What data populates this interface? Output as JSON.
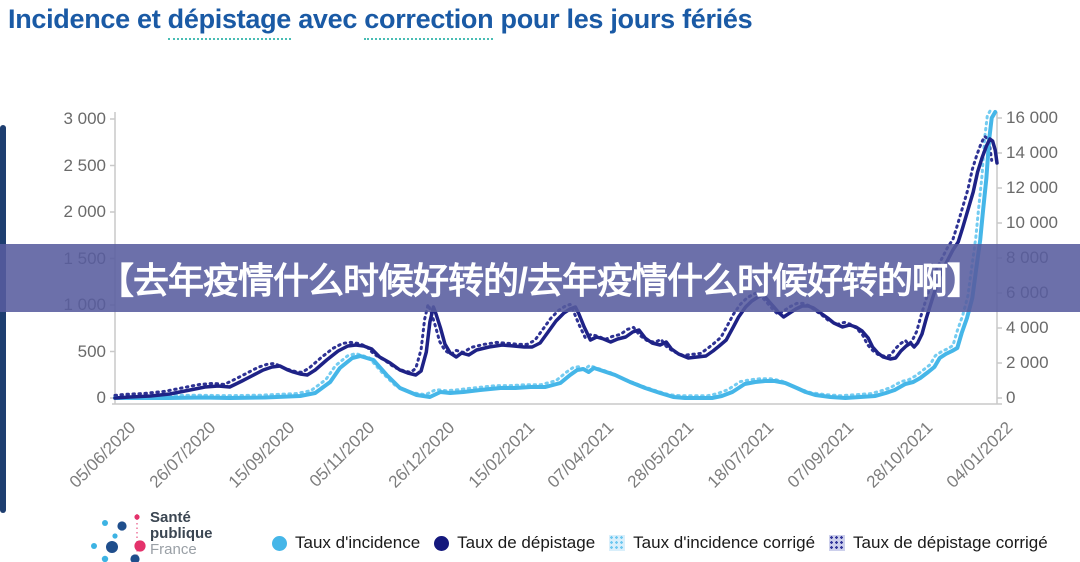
{
  "title": {
    "segments": [
      {
        "text": "Incidence et ",
        "underline": false
      },
      {
        "text": "dépistage",
        "underline": true
      },
      {
        "text": " avec ",
        "underline": false
      },
      {
        "text": "correction",
        "underline": true
      },
      {
        "text": " pour les jours fériés",
        "underline": false
      }
    ]
  },
  "banner": {
    "text": "【去年疫情什么时候好转的/去年疫情什么时候好转的啊】",
    "background": "#585c9e",
    "text_color": "#ffffff"
  },
  "logo": {
    "line1": "Santé",
    "line2": "publique",
    "line3": "France"
  },
  "legend": {
    "items": [
      {
        "label": "Taux d'incidence",
        "marker": "circle",
        "color": "#45b6e8"
      },
      {
        "label": "Taux de dépistage",
        "marker": "circle",
        "color": "#14187d"
      },
      {
        "label": "Taux d'incidence corrigé",
        "marker": "dots-square",
        "fill": "#d9effb",
        "dot": "#6fc8f0"
      },
      {
        "label": "Taux de dépistage corrigé",
        "marker": "dots-square",
        "fill": "#cdd0ec",
        "dot": "#34389b"
      }
    ]
  },
  "chart_data": {
    "type": "line",
    "title": "Incidence et dépistage avec correction pour les jours fériés",
    "grid": false,
    "legend_position": "bottom",
    "x_axis": {
      "tick_labels": [
        "05/06/2020",
        "26/07/2020",
        "15/09/2020",
        "05/11/2020",
        "26/12/2020",
        "15/02/2021",
        "07/04/2021",
        "28/05/2021",
        "18/07/2021",
        "07/09/2021",
        "28/10/2021",
        "04/01/2022"
      ]
    },
    "y_axis_left": {
      "range": [
        0,
        3000
      ],
      "ticks": [
        {
          "v": 3000,
          "label": "3 000"
        },
        {
          "v": 2500,
          "label": "2 500"
        },
        {
          "v": 2000,
          "label": "2 000"
        },
        {
          "v": 1500,
          "label": "1 500"
        },
        {
          "v": 1000,
          "label": "1 000"
        },
        {
          "v": 500,
          "label": "500"
        },
        {
          "v": 0,
          "label": "0"
        }
      ]
    },
    "y_axis_right": {
      "range": [
        0,
        16000
      ],
      "ticks": [
        {
          "v": 16000,
          "label": "16 000"
        },
        {
          "v": 14000,
          "label": "14 000"
        },
        {
          "v": 12000,
          "label": "12 000"
        },
        {
          "v": 10000,
          "label": "10 000"
        },
        {
          "v": 8000,
          "label": "8 000"
        },
        {
          "v": 6000,
          "label": "6 000"
        },
        {
          "v": 4000,
          "label": "4 000"
        },
        {
          "v": 2000,
          "label": "2 000"
        },
        {
          "v": 0,
          "label": "0"
        }
      ]
    },
    "series": [
      {
        "name": "Taux d'incidence corrigé",
        "axis": "left",
        "style": "dotted",
        "color": "#74ccf1",
        "width": 3,
        "base": "Taux d'incidence",
        "dt": -0.005,
        "dv": 25
      },
      {
        "name": "Taux de dépistage corrigé",
        "axis": "right",
        "style": "dotted",
        "color": "#2e3294",
        "width": 3,
        "base": "Taux de dépistage",
        "dt": -0.006,
        "dv": 150
      },
      {
        "name": "Taux d'incidence",
        "axis": "left",
        "style": "solid",
        "color": "#45b6e8",
        "width": 4,
        "points": [
          [
            0,
            0
          ],
          [
            0.03,
            0
          ],
          [
            0.06,
            0
          ],
          [
            0.1,
            5
          ],
          [
            0.13,
            0
          ],
          [
            0.17,
            5
          ],
          [
            0.21,
            22
          ],
          [
            0.227,
            54
          ],
          [
            0.244,
            172
          ],
          [
            0.255,
            323
          ],
          [
            0.269,
            430
          ],
          [
            0.278,
            452
          ],
          [
            0.293,
            409
          ],
          [
            0.308,
            247
          ],
          [
            0.323,
            108
          ],
          [
            0.342,
            32
          ],
          [
            0.357,
            11
          ],
          [
            0.369,
            65
          ],
          [
            0.38,
            54
          ],
          [
            0.395,
            65
          ],
          [
            0.414,
            86
          ],
          [
            0.437,
            108
          ],
          [
            0.454,
            108
          ],
          [
            0.471,
            118
          ],
          [
            0.488,
            118
          ],
          [
            0.505,
            161
          ],
          [
            0.516,
            247
          ],
          [
            0.524,
            301
          ],
          [
            0.531,
            312
          ],
          [
            0.537,
            280
          ],
          [
            0.543,
            323
          ],
          [
            0.55,
            301
          ],
          [
            0.567,
            247
          ],
          [
            0.584,
            172
          ],
          [
            0.601,
            108
          ],
          [
            0.618,
            54
          ],
          [
            0.633,
            11
          ],
          [
            0.646,
            0
          ],
          [
            0.663,
            0
          ],
          [
            0.677,
            0
          ],
          [
            0.688,
            22
          ],
          [
            0.7,
            65
          ],
          [
            0.714,
            151
          ],
          [
            0.726,
            172
          ],
          [
            0.737,
            183
          ],
          [
            0.748,
            183
          ],
          [
            0.76,
            161
          ],
          [
            0.773,
            108
          ],
          [
            0.783,
            65
          ],
          [
            0.794,
            32
          ],
          [
            0.811,
            11
          ],
          [
            0.828,
            0
          ],
          [
            0.845,
            11
          ],
          [
            0.862,
            22
          ],
          [
            0.874,
            54
          ],
          [
            0.884,
            86
          ],
          [
            0.896,
            151
          ],
          [
            0.905,
            172
          ],
          [
            0.913,
            215
          ],
          [
            0.922,
            280
          ],
          [
            0.929,
            333
          ],
          [
            0.935,
            430
          ],
          [
            0.942,
            473
          ],
          [
            0.949,
            505
          ],
          [
            0.955,
            538
          ],
          [
            0.96,
            699
          ],
          [
            0.966,
            860
          ],
          [
            0.972,
            1075
          ],
          [
            0.976,
            1355
          ],
          [
            0.981,
            1699
          ],
          [
            0.984,
            2000
          ],
          [
            0.988,
            2366
          ],
          [
            0.991,
            2774
          ],
          [
            0.994,
            3011
          ],
          [
            0.998,
            3075
          ]
        ]
      },
      {
        "name": "Taux de dépistage",
        "axis": "right",
        "style": "solid",
        "color": "#1e2286",
        "width": 3.5,
        "points": [
          [
            0,
            0
          ],
          [
            0.017,
            57
          ],
          [
            0.04,
            114
          ],
          [
            0.062,
            229
          ],
          [
            0.085,
            457
          ],
          [
            0.102,
            629
          ],
          [
            0.117,
            686
          ],
          [
            0.13,
            629
          ],
          [
            0.144,
            971
          ],
          [
            0.155,
            1257
          ],
          [
            0.168,
            1600
          ],
          [
            0.178,
            1771
          ],
          [
            0.187,
            1829
          ],
          [
            0.196,
            1600
          ],
          [
            0.202,
            1486
          ],
          [
            0.21,
            1371
          ],
          [
            0.218,
            1314
          ],
          [
            0.227,
            1600
          ],
          [
            0.24,
            2171
          ],
          [
            0.253,
            2686
          ],
          [
            0.264,
            2971
          ],
          [
            0.273,
            3029
          ],
          [
            0.282,
            2971
          ],
          [
            0.291,
            2800
          ],
          [
            0.3,
            2343
          ],
          [
            0.312,
            2000
          ],
          [
            0.323,
            1600
          ],
          [
            0.332,
            1429
          ],
          [
            0.341,
            1314
          ],
          [
            0.347,
            1543
          ],
          [
            0.353,
            2629
          ],
          [
            0.357,
            4343
          ],
          [
            0.361,
            5200
          ],
          [
            0.364,
            4800
          ],
          [
            0.369,
            4000
          ],
          [
            0.374,
            3086
          ],
          [
            0.38,
            2571
          ],
          [
            0.387,
            2343
          ],
          [
            0.393,
            2571
          ],
          [
            0.401,
            2457
          ],
          [
            0.41,
            2743
          ],
          [
            0.424,
            2914
          ],
          [
            0.439,
            3029
          ],
          [
            0.452,
            2971
          ],
          [
            0.464,
            2914
          ],
          [
            0.473,
            2914
          ],
          [
            0.482,
            3143
          ],
          [
            0.491,
            3771
          ],
          [
            0.5,
            4400
          ],
          [
            0.509,
            4857
          ],
          [
            0.516,
            5086
          ],
          [
            0.522,
            5200
          ],
          [
            0.526,
            4800
          ],
          [
            0.532,
            4057
          ],
          [
            0.539,
            3314
          ],
          [
            0.546,
            3486
          ],
          [
            0.554,
            3371
          ],
          [
            0.562,
            3200
          ],
          [
            0.57,
            3371
          ],
          [
            0.579,
            3486
          ],
          [
            0.587,
            3771
          ],
          [
            0.594,
            3886
          ],
          [
            0.601,
            3429
          ],
          [
            0.609,
            3143
          ],
          [
            0.618,
            3029
          ],
          [
            0.625,
            3200
          ],
          [
            0.631,
            2800
          ],
          [
            0.639,
            2514
          ],
          [
            0.65,
            2286
          ],
          [
            0.66,
            2343
          ],
          [
            0.67,
            2400
          ],
          [
            0.678,
            2686
          ],
          [
            0.685,
            2971
          ],
          [
            0.693,
            3314
          ],
          [
            0.701,
            4057
          ],
          [
            0.707,
            4629
          ],
          [
            0.715,
            5200
          ],
          [
            0.722,
            5543
          ],
          [
            0.729,
            5771
          ],
          [
            0.735,
            5886
          ],
          [
            0.74,
            5600
          ],
          [
            0.747,
            5200
          ],
          [
            0.753,
            4857
          ],
          [
            0.758,
            4629
          ],
          [
            0.765,
            4857
          ],
          [
            0.772,
            5086
          ],
          [
            0.779,
            5257
          ],
          [
            0.786,
            5257
          ],
          [
            0.792,
            5143
          ],
          [
            0.8,
            4857
          ],
          [
            0.808,
            4571
          ],
          [
            0.815,
            4286
          ],
          [
            0.825,
            4057
          ],
          [
            0.833,
            4171
          ],
          [
            0.84,
            4057
          ],
          [
            0.847,
            3829
          ],
          [
            0.854,
            3429
          ],
          [
            0.859,
            2914
          ],
          [
            0.865,
            2571
          ],
          [
            0.871,
            2343
          ],
          [
            0.879,
            2229
          ],
          [
            0.885,
            2286
          ],
          [
            0.891,
            2686
          ],
          [
            0.897,
            2971
          ],
          [
            0.902,
            3143
          ],
          [
            0.906,
            2914
          ],
          [
            0.91,
            3143
          ],
          [
            0.915,
            3657
          ],
          [
            0.92,
            4571
          ],
          [
            0.927,
            5714
          ],
          [
            0.935,
            6971
          ],
          [
            0.943,
            7771
          ],
          [
            0.95,
            8457
          ],
          [
            0.956,
            8914
          ],
          [
            0.961,
            9714
          ],
          [
            0.967,
            10743
          ],
          [
            0.973,
            11771
          ],
          [
            0.978,
            12914
          ],
          [
            0.983,
            13714
          ],
          [
            0.988,
            14400
          ],
          [
            0.992,
            14800
          ],
          [
            0.995,
            14686
          ],
          [
            0.998,
            14171
          ],
          [
            1.0,
            13429
          ]
        ]
      }
    ]
  },
  "colors": {
    "title_blue": "#1a5aa5",
    "underline_teal": "#49bdb4",
    "axis_gray": "#c9c9c9",
    "label_gray": "#6a6a6a",
    "incidence": "#45b6e8",
    "depistage": "#1e2286"
  }
}
